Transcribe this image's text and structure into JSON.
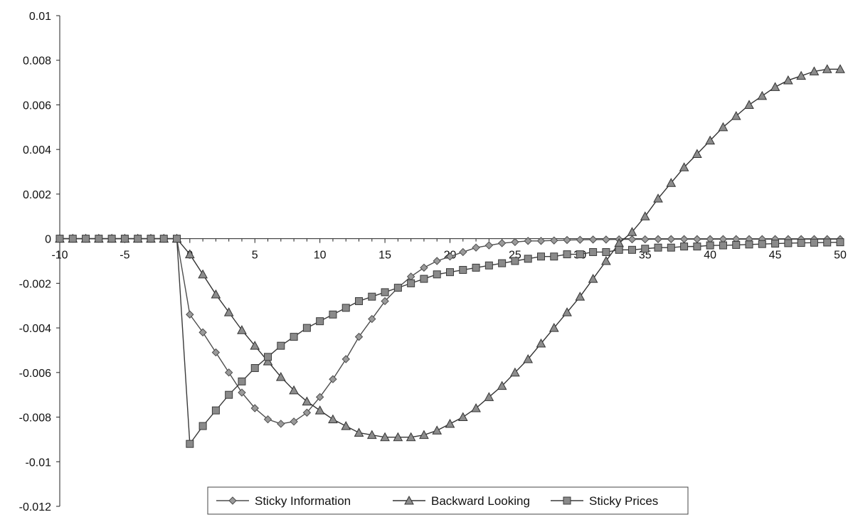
{
  "chart_data": {
    "type": "line",
    "title": "",
    "xlabel": "",
    "ylabel": "",
    "xlim": [
      -10,
      50
    ],
    "ylim": [
      -0.012,
      0.01
    ],
    "x_ticks": [
      -10,
      -5,
      0,
      5,
      10,
      15,
      20,
      25,
      30,
      35,
      40,
      45,
      50
    ],
    "y_ticks": [
      0.01,
      0.008,
      0.006,
      0.004,
      0.002,
      0,
      -0.002,
      -0.004,
      -0.006,
      -0.008,
      -0.01,
      -0.012
    ],
    "x_tick_labels": [
      "-10",
      "-5",
      "0",
      "5",
      "10",
      "15",
      "20",
      "25",
      "30",
      "35",
      "40",
      "45",
      "50"
    ],
    "y_tick_labels": [
      "0.01",
      "0.008",
      "0.006",
      "0.004",
      "0.002",
      "0",
      "-0.002",
      "-0.004",
      "-0.006",
      "-0.008",
      "-0.01",
      "-0.012"
    ],
    "grid": false,
    "legend_position": "bottom-center",
    "x": [
      -10,
      -9,
      -8,
      -7,
      -6,
      -5,
      -4,
      -3,
      -2,
      -1,
      0,
      1,
      2,
      3,
      4,
      5,
      6,
      7,
      8,
      9,
      10,
      11,
      12,
      13,
      14,
      15,
      16,
      17,
      18,
      19,
      20,
      21,
      22,
      23,
      24,
      25,
      26,
      27,
      28,
      29,
      30,
      31,
      32,
      33,
      34,
      35,
      36,
      37,
      38,
      39,
      40,
      41,
      42,
      43,
      44,
      45,
      46,
      47,
      48,
      49,
      50
    ],
    "series": [
      {
        "name": "Sticky Information",
        "marker": "diamond",
        "color": "#4d4d4d",
        "values": [
          0,
          0,
          0,
          0,
          0,
          0,
          0,
          0,
          0,
          0,
          -0.0034,
          -0.0042,
          -0.0051,
          -0.006,
          -0.0069,
          -0.0076,
          -0.0081,
          -0.0083,
          -0.0082,
          -0.0078,
          -0.0071,
          -0.0063,
          -0.0054,
          -0.0044,
          -0.0036,
          -0.0028,
          -0.0022,
          -0.0017,
          -0.0013,
          -0.001,
          -0.0008,
          -0.0006,
          -0.0004,
          -0.0003,
          -0.0002,
          -0.00015,
          -0.0001,
          -0.0001,
          -8e-05,
          -6e-05,
          -5e-05,
          -4e-05,
          -4e-05,
          -3e-05,
          -3e-05,
          -3e-05,
          -2e-05,
          -2e-05,
          -2e-05,
          -2e-05,
          -2e-05,
          -2e-05,
          -2e-05,
          -2e-05,
          -2e-05,
          -2e-05,
          -2e-05,
          -2e-05,
          -2e-05,
          -2e-05,
          -2e-05
        ]
      },
      {
        "name": "Backward Looking",
        "marker": "triangle",
        "color": "#333333",
        "values": [
          0,
          0,
          0,
          0,
          0,
          0,
          0,
          0,
          0,
          0,
          -0.0007,
          -0.0016,
          -0.0025,
          -0.0033,
          -0.0041,
          -0.0048,
          -0.0055,
          -0.0062,
          -0.0068,
          -0.0073,
          -0.0077,
          -0.0081,
          -0.0084,
          -0.0087,
          -0.0088,
          -0.0089,
          -0.0089,
          -0.0089,
          -0.0088,
          -0.0086,
          -0.0083,
          -0.008,
          -0.0076,
          -0.0071,
          -0.0066,
          -0.006,
          -0.0054,
          -0.0047,
          -0.004,
          -0.0033,
          -0.0026,
          -0.0018,
          -0.001,
          -0.0002,
          0.0003,
          0.001,
          0.0018,
          0.0025,
          0.0032,
          0.0038,
          0.0044,
          0.005,
          0.0055,
          0.006,
          0.0064,
          0.0068,
          0.0071,
          0.0073,
          0.0075,
          0.0076,
          0.0076
        ]
      },
      {
        "name": "Sticky Prices",
        "marker": "square",
        "color": "#3a3a3a",
        "values": [
          0,
          0,
          0,
          0,
          0,
          0,
          0,
          0,
          0,
          0,
          -0.0092,
          -0.0084,
          -0.0077,
          -0.007,
          -0.0064,
          -0.0058,
          -0.0053,
          -0.0048,
          -0.0044,
          -0.004,
          -0.0037,
          -0.0034,
          -0.0031,
          -0.0028,
          -0.0026,
          -0.0024,
          -0.0022,
          -0.002,
          -0.0018,
          -0.0016,
          -0.0015,
          -0.0014,
          -0.0013,
          -0.0012,
          -0.0011,
          -0.001,
          -0.0009,
          -0.0008,
          -0.0008,
          -0.0007,
          -0.0007,
          -0.0006,
          -0.0006,
          -0.0005,
          -0.0005,
          -0.00045,
          -0.0004,
          -0.0004,
          -0.00035,
          -0.00035,
          -0.0003,
          -0.0003,
          -0.00028,
          -0.00026,
          -0.00024,
          -0.00022,
          -0.0002,
          -0.00019,
          -0.00018,
          -0.00017,
          -0.00016
        ]
      }
    ]
  }
}
